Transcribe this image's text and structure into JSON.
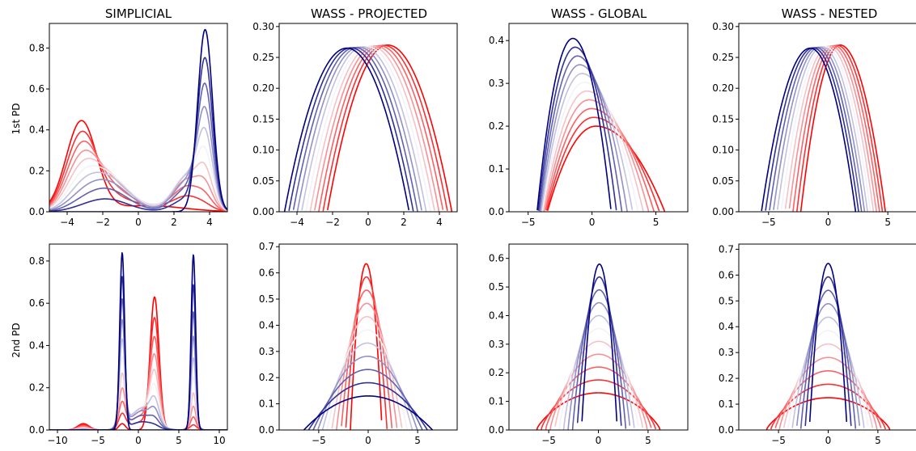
{
  "figure": {
    "col_titles": [
      "SIMPLICIAL",
      "WASS - PROJECTED",
      "WASS - GLOBAL",
      "WASS - NESTED"
    ],
    "row_labels": [
      "1st PD",
      "2nd PD"
    ]
  },
  "colors": {
    "start": "#ff0000",
    "mid": "#f2f2f8",
    "end": "#000080"
  },
  "chart_data": [
    {
      "type": "line",
      "title": "SIMPLICIAL",
      "ylabel": "1st PD",
      "xlabel": "",
      "xlim": [
        -5,
        5
      ],
      "ylim": [
        0,
        0.92
      ],
      "grid": false,
      "xticks": [
        -4,
        -2,
        0,
        2,
        4
      ],
      "yticks": [
        0.0,
        0.2,
        0.4,
        0.6,
        0.8
      ],
      "xtick_labels": [
        "−4",
        "−2",
        "0",
        "2",
        "4"
      ],
      "ytick_labels": [
        "0.0",
        "0.2",
        "0.4",
        "0.6",
        "0.8"
      ],
      "curve_count": 11,
      "family": "gaussian_mixture",
      "components_start": [
        {
          "mu": -3.2,
          "sigma": 0.85,
          "peak": 0.44
        },
        {
          "mu": 0.5,
          "sigma": 2.0,
          "peak": 0.03
        }
      ],
      "components_end": [
        {
          "mu": 3.75,
          "sigma": 0.42,
          "peak": 0.89
        }
      ],
      "components_mid": [
        {
          "mu": -1.8,
          "sigma": 1.2,
          "peak": 0.19
        },
        {
          "mu": 2.8,
          "sigma": 0.8,
          "peak": 0.2
        }
      ]
    },
    {
      "type": "line",
      "title": "WASS - PROJECTED",
      "ylabel": "",
      "xlabel": "",
      "xlim": [
        -5,
        5
      ],
      "ylim": [
        0,
        0.305
      ],
      "grid": false,
      "xticks": [
        -4,
        -2,
        0,
        2,
        4
      ],
      "yticks": [
        0.0,
        0.05,
        0.1,
        0.15,
        0.2,
        0.25,
        0.3
      ],
      "xtick_labels": [
        "−4",
        "−2",
        "0",
        "2",
        "4"
      ],
      "ytick_labels": [
        "0.00",
        "0.05",
        "0.10",
        "0.15",
        "0.20",
        "0.25",
        "0.30"
      ],
      "curve_count": 11,
      "family": "skew_parabola",
      "start": {
        "left": -2.3,
        "right": 4.7,
        "peak_x": 1.1,
        "peak": 0.27
      },
      "end": {
        "left": -4.7,
        "right": 2.3,
        "peak_x": -1.2,
        "peak": 0.265
      }
    },
    {
      "type": "line",
      "title": "WASS - GLOBAL",
      "ylabel": "",
      "xlabel": "",
      "xlim": [
        -6.5,
        7.5
      ],
      "ylim": [
        0,
        0.44
      ],
      "grid": false,
      "xticks": [
        -5,
        0,
        5
      ],
      "yticks": [
        0.0,
        0.1,
        0.2,
        0.3,
        0.4
      ],
      "xtick_labels": [
        "−5",
        "0",
        "5"
      ],
      "ytick_labels": [
        "0.0",
        "0.1",
        "0.2",
        "0.3",
        "0.4"
      ],
      "curve_count": 11,
      "family": "skew_parabola",
      "start": {
        "left": -3.5,
        "right": 5.7,
        "peak_x": 0.3,
        "peak": 0.2
      },
      "end": {
        "left": -4.3,
        "right": 1.5,
        "peak_x": -1.5,
        "peak": 0.405
      }
    },
    {
      "type": "line",
      "title": "WASS - NESTED",
      "ylabel": "",
      "xlabel": "",
      "xlim": [
        -7.5,
        7.5
      ],
      "ylim": [
        0,
        0.305
      ],
      "grid": false,
      "xticks": [
        -5,
        0,
        5
      ],
      "yticks": [
        0.0,
        0.05,
        0.1,
        0.15,
        0.2,
        0.25,
        0.3
      ],
      "xtick_labels": [
        "−5",
        "0",
        "5"
      ],
      "ytick_labels": [
        "0.00",
        "0.05",
        "0.10",
        "0.15",
        "0.20",
        "0.25",
        "0.30"
      ],
      "curve_count": 11,
      "family": "skew_parabola",
      "start": {
        "left": -2.3,
        "right": 4.8,
        "peak_x": 1.0,
        "peak": 0.27
      },
      "end": {
        "left": -5.6,
        "right": 2.3,
        "peak_x": -1.5,
        "peak": 0.265
      }
    },
    {
      "type": "line",
      "title": "",
      "ylabel": "2nd PD",
      "xlabel": "",
      "xlim": [
        -11,
        11
      ],
      "ylim": [
        0,
        0.88
      ],
      "grid": false,
      "xticks": [
        -10,
        -5,
        0,
        5,
        10
      ],
      "yticks": [
        0.0,
        0.2,
        0.4,
        0.6,
        0.8
      ],
      "xtick_labels": [
        "−10",
        "−5",
        "0",
        "5",
        "10"
      ],
      "ytick_labels": [
        "0.0",
        "0.2",
        "0.4",
        "0.6",
        "0.8"
      ],
      "curve_count": 11,
      "family": "gaussian_mixture",
      "components_start": [
        {
          "mu": 2.0,
          "sigma": 0.55,
          "peak": 0.63
        },
        {
          "mu": -6.8,
          "sigma": 0.7,
          "peak": 0.03
        },
        {
          "mu": -2.0,
          "sigma": 0.4,
          "peak": 0.03
        }
      ],
      "components_end": [
        {
          "mu": -2.0,
          "sigma": 0.3,
          "peak": 0.84
        },
        {
          "mu": 6.8,
          "sigma": 0.28,
          "peak": 0.83
        }
      ],
      "components_mid": [
        {
          "mu": 0.5,
          "sigma": 1.4,
          "peak": 0.12
        },
        {
          "mu": -2.0,
          "sigma": 0.5,
          "peak": 0.12
        },
        {
          "mu": 6.8,
          "sigma": 0.5,
          "peak": 0.05
        }
      ]
    },
    {
      "type": "line",
      "title": "",
      "ylabel": "",
      "xlabel": "",
      "xlim": [
        -9,
        9
      ],
      "ylim": [
        0,
        0.71
      ],
      "grid": false,
      "xticks": [
        -5,
        0,
        5
      ],
      "yticks": [
        0.0,
        0.1,
        0.2,
        0.3,
        0.4,
        0.5,
        0.6,
        0.7
      ],
      "xtick_labels": [
        "−5",
        "0",
        "5"
      ],
      "ytick_labels": [
        "0.0",
        "0.1",
        "0.2",
        "0.3",
        "0.4",
        "0.5",
        "0.6",
        "0.7"
      ],
      "curve_count": 11,
      "family": "symmetric_parabola",
      "start": {
        "center": -0.2,
        "half_width": 1.6,
        "peak": 0.635,
        "shoulder": 0
      },
      "end": {
        "center": 0,
        "half_width": 6.5,
        "peak": 0.13,
        "shoulder": 0
      }
    },
    {
      "type": "line",
      "title": "",
      "ylabel": "",
      "xlabel": "",
      "xlim": [
        -9,
        9
      ],
      "ylim": [
        0,
        0.65
      ],
      "grid": false,
      "xticks": [
        -5,
        0,
        5
      ],
      "yticks": [
        0.0,
        0.1,
        0.2,
        0.3,
        0.4,
        0.5,
        0.6
      ],
      "xtick_labels": [
        "−5",
        "0",
        "5"
      ],
      "ytick_labels": [
        "0.0",
        "0.1",
        "0.2",
        "0.3",
        "0.4",
        "0.5",
        "0.6"
      ],
      "curve_count": 11,
      "family": "symmetric_parabola",
      "start": {
        "center": 0,
        "half_width": 6.2,
        "peak": 0.13,
        "shoulder": 0.3
      },
      "end": {
        "center": 0.1,
        "half_width": 1.8,
        "peak": 0.58,
        "shoulder": 0
      }
    },
    {
      "type": "line",
      "title": "",
      "ylabel": "",
      "xlabel": "",
      "xlim": [
        -9,
        9
      ],
      "ylim": [
        0,
        0.72
      ],
      "grid": false,
      "xticks": [
        -5,
        0,
        5
      ],
      "yticks": [
        0.0,
        0.1,
        0.2,
        0.3,
        0.4,
        0.5,
        0.6,
        0.7
      ],
      "xtick_labels": [
        "−5",
        "0",
        "5"
      ],
      "ytick_labels": [
        "0.0",
        "0.1",
        "0.2",
        "0.3",
        "0.4",
        "0.5",
        "0.6",
        "0.7"
      ],
      "curve_count": 11,
      "family": "symmetric_parabola",
      "start": {
        "center": 0,
        "half_width": 6.2,
        "peak": 0.125,
        "shoulder": 0.3
      },
      "end": {
        "center": 0,
        "half_width": 1.9,
        "peak": 0.645,
        "shoulder": 0
      }
    }
  ]
}
